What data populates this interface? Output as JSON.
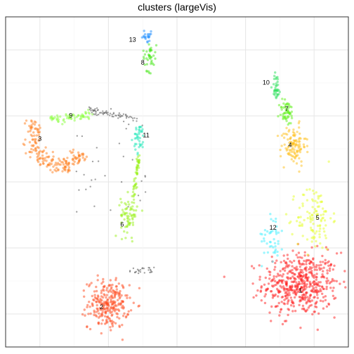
{
  "chart_data": {
    "type": "scatter",
    "title": "clusters (largeVis)",
    "xlabel": "",
    "ylabel": "",
    "xlim": [
      0,
      100
    ],
    "ylim": [
      0,
      100
    ],
    "grid": true,
    "legend": "none",
    "clusters": [
      {
        "label": "1",
        "color": "#ff2020",
        "label_pos": [
          86,
          17
        ]
      },
      {
        "label": "2",
        "color": "#ff4a1e",
        "label_pos": [
          28,
          12
        ]
      },
      {
        "label": "3",
        "color": "#ff8020",
        "label_pos": [
          10,
          63
        ]
      },
      {
        "label": "4",
        "color": "#ffbf1a",
        "label_pos": [
          83,
          61
        ]
      },
      {
        "label": "5",
        "color": "#e5ff2a",
        "label_pos": [
          91,
          39
        ]
      },
      {
        "label": "6",
        "color": "#9af21a",
        "label_pos": [
          34,
          37
        ]
      },
      {
        "label": "7",
        "color": "#5ff21a",
        "label_pos": [
          82,
          72
        ]
      },
      {
        "label": "8",
        "color": "#47e81a",
        "label_pos": [
          40,
          86
        ]
      },
      {
        "label": "9",
        "color": "#8cff40",
        "label_pos": [
          19,
          70
        ]
      },
      {
        "label": "10",
        "color": "#2ae05a",
        "label_pos": [
          76,
          80
        ]
      },
      {
        "label": "11",
        "color": "#1ae8b8",
        "label_pos": [
          41,
          64
        ]
      },
      {
        "label": "12",
        "color": "#40f0ff",
        "label_pos": [
          78,
          36
        ]
      },
      {
        "label": "13",
        "color": "#1a8cff",
        "label_pos": [
          37,
          93
        ]
      }
    ],
    "noise_color": "#555555"
  }
}
